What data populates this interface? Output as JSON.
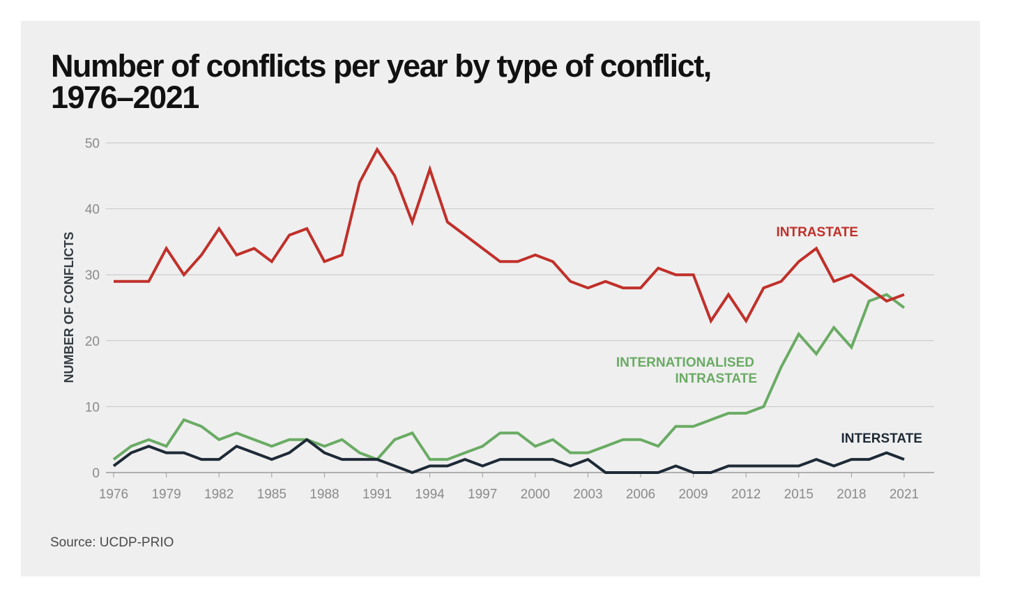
{
  "title_line1": "Number of conflicts per year by type of conflict,",
  "title_line2": "1976–2021",
  "source": "Source: UCDP-PRIO",
  "chart_data": {
    "type": "line",
    "ylabel": "NUMBER OF CONFLICTS",
    "xlabel": "",
    "ylim": [
      0,
      50
    ],
    "yticks": [
      0,
      10,
      20,
      30,
      40,
      50
    ],
    "xticks": [
      1976,
      1979,
      1982,
      1985,
      1988,
      1991,
      1994,
      1997,
      2000,
      2003,
      2006,
      2009,
      2012,
      2015,
      2018,
      2021
    ],
    "xlim": [
      1976,
      2021
    ],
    "grid": true,
    "x": [
      1976,
      1977,
      1978,
      1979,
      1980,
      1981,
      1982,
      1983,
      1984,
      1985,
      1986,
      1987,
      1988,
      1989,
      1990,
      1991,
      1992,
      1993,
      1994,
      1995,
      1996,
      1997,
      1998,
      1999,
      2000,
      2001,
      2002,
      2003,
      2004,
      2005,
      2006,
      2007,
      2008,
      2009,
      2010,
      2011,
      2012,
      2013,
      2014,
      2015,
      2016,
      2017,
      2018,
      2019,
      2020,
      2021
    ],
    "series": [
      {
        "name": "Intrastate",
        "label": "INTRASTATE",
        "color": "#c0302a",
        "values": [
          29,
          29,
          29,
          34,
          30,
          33,
          37,
          33,
          34,
          32,
          36,
          37,
          32,
          33,
          44,
          49,
          45,
          38,
          46,
          38,
          36,
          34,
          32,
          32,
          33,
          32,
          29,
          28,
          29,
          28,
          28,
          31,
          30,
          30,
          23,
          27,
          23,
          28,
          29,
          32,
          34,
          29,
          30,
          28,
          26,
          27
        ]
      },
      {
        "name": "Internationalised intrastate",
        "label_lines": [
          "INTERNATIONALISED",
          "INTRASTATE"
        ],
        "color": "#6aab64",
        "values": [
          2,
          4,
          5,
          4,
          8,
          7,
          5,
          6,
          5,
          4,
          5,
          5,
          4,
          5,
          3,
          2,
          5,
          6,
          2,
          2,
          3,
          4,
          6,
          6,
          4,
          5,
          3,
          3,
          4,
          5,
          5,
          4,
          7,
          7,
          8,
          9,
          9,
          10,
          16,
          21,
          18,
          22,
          19,
          26,
          27,
          25
        ]
      },
      {
        "name": "Interstate",
        "label": "INTERSTATE",
        "color": "#1e2a36",
        "values": [
          1,
          3,
          4,
          3,
          3,
          2,
          2,
          4,
          3,
          2,
          3,
          5,
          3,
          2,
          2,
          2,
          1,
          0,
          1,
          1,
          2,
          1,
          2,
          2,
          2,
          2,
          1,
          2,
          0,
          0,
          0,
          0,
          1,
          0,
          0,
          1,
          1,
          1,
          1,
          1,
          2,
          1,
          2,
          2,
          3,
          2
        ]
      }
    ]
  }
}
